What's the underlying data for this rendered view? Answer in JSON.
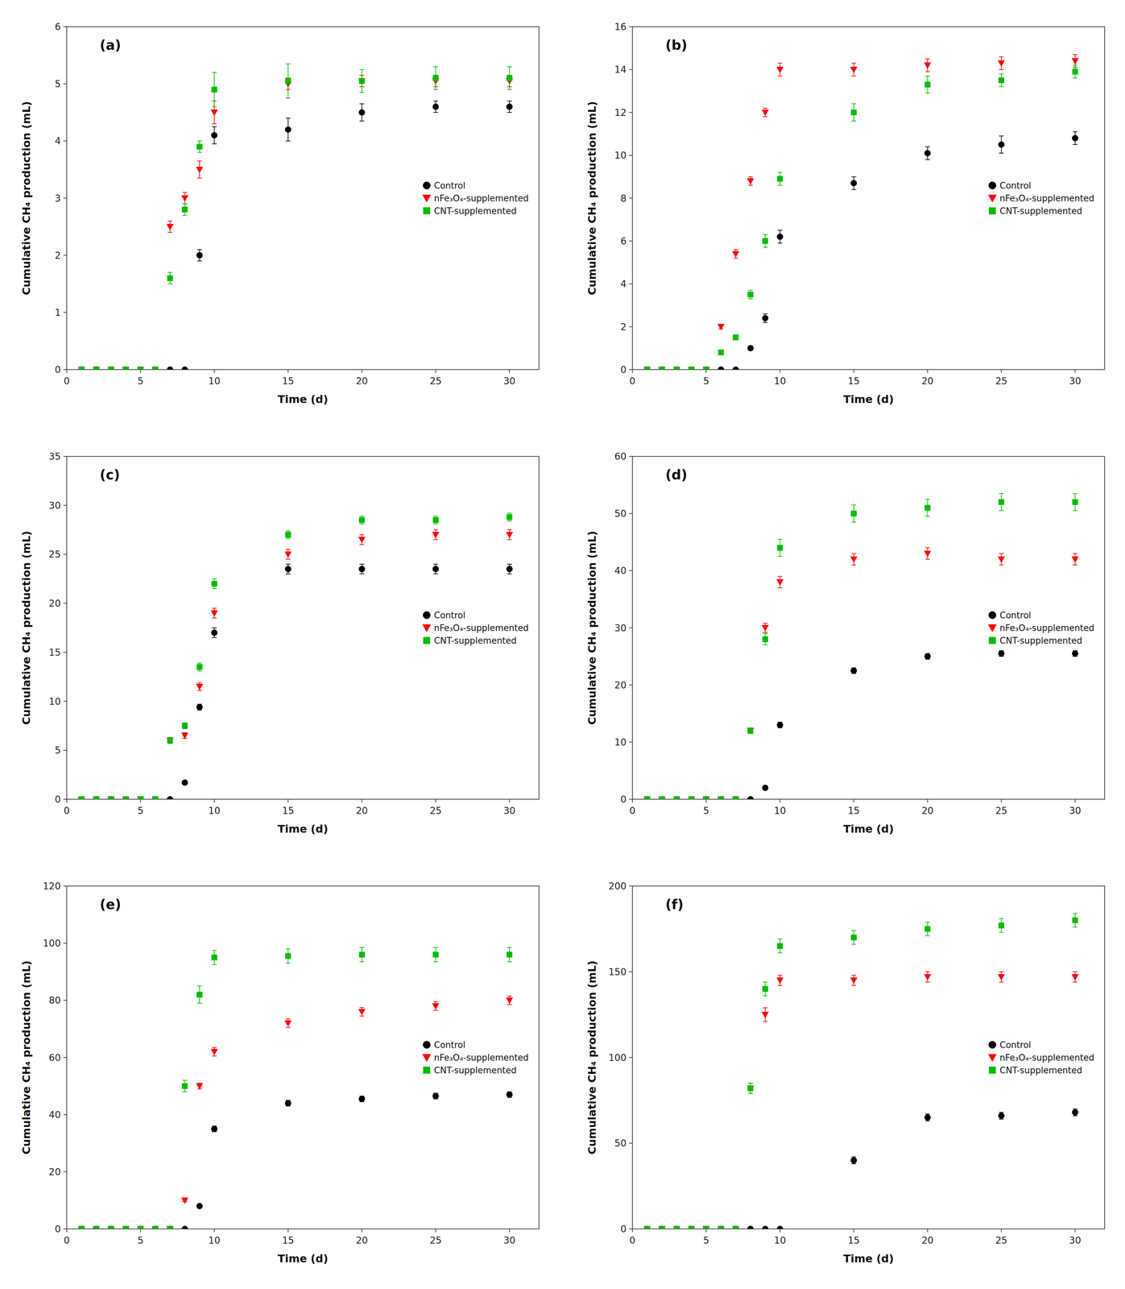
{
  "chart_data": [
    {
      "type": "scatter",
      "title": "(a)",
      "x_label": "Time (d)",
      "y_label": "Cumulative CH₄ production (mL)",
      "x": [
        1,
        2,
        3,
        4,
        5,
        6,
        7,
        8,
        9,
        10,
        15,
        20,
        25,
        30
      ],
      "xlim": [
        0,
        32
      ],
      "xticks": [
        0,
        5,
        10,
        15,
        20,
        25,
        30
      ],
      "ylim": [
        0,
        6
      ],
      "yticks": [
        0,
        1,
        2,
        3,
        4,
        5,
        6
      ],
      "grid": false,
      "legend": "center right",
      "series": [
        {
          "name": "Control",
          "color": "#000000",
          "marker": "circle",
          "values": [
            0,
            0,
            0,
            0,
            0,
            0,
            0,
            0,
            2.0,
            4.1,
            4.2,
            4.5,
            4.6,
            4.6
          ],
          "yerr": [
            0,
            0,
            0,
            0,
            0,
            0,
            0,
            0,
            0.1,
            0.15,
            0.2,
            0.15,
            0.1,
            0.1
          ]
        },
        {
          "name": "nFe₃O₄-supplemented",
          "color": "#ff0000",
          "marker": "triangle-down",
          "values": [
            0,
            0,
            0,
            0,
            0,
            0,
            2.5,
            3.0,
            3.5,
            4.5,
            5.0,
            5.05,
            5.05,
            5.05
          ],
          "yerr": [
            0,
            0,
            0,
            0,
            0,
            0,
            0.1,
            0.1,
            0.15,
            0.2,
            0.1,
            0.1,
            0.1,
            0.1
          ]
        },
        {
          "name": "CNT-supplemented",
          "color": "#00bb00",
          "marker": "square",
          "values": [
            0,
            0,
            0,
            0,
            0,
            0,
            1.6,
            2.8,
            3.9,
            4.9,
            5.05,
            5.05,
            5.1,
            5.1
          ],
          "yerr": [
            0,
            0,
            0,
            0,
            0,
            0,
            0.1,
            0.1,
            0.1,
            0.3,
            0.3,
            0.2,
            0.2,
            0.2
          ]
        }
      ]
    },
    {
      "type": "scatter",
      "title": "(b)",
      "x_label": "Time (d)",
      "y_label": "Cumulative CH₄ production (mL)",
      "x": [
        1,
        2,
        3,
        4,
        5,
        6,
        7,
        8,
        9,
        10,
        15,
        20,
        25,
        30
      ],
      "xlim": [
        0,
        32
      ],
      "xticks": [
        0,
        5,
        10,
        15,
        20,
        25,
        30
      ],
      "ylim": [
        0,
        16
      ],
      "yticks": [
        0,
        2,
        4,
        6,
        8,
        10,
        12,
        14,
        16
      ],
      "grid": false,
      "legend": "center right",
      "series": [
        {
          "name": "Control",
          "color": "#000000",
          "marker": "circle",
          "values": [
            0,
            0,
            0,
            0,
            0,
            0,
            0,
            1.0,
            2.4,
            6.2,
            8.7,
            10.1,
            10.5,
            10.8
          ],
          "yerr": [
            0,
            0,
            0,
            0,
            0,
            0,
            0,
            0.1,
            0.2,
            0.3,
            0.3,
            0.3,
            0.4,
            0.3
          ]
        },
        {
          "name": "nFe₃O₄-supplemented",
          "color": "#ff0000",
          "marker": "triangle-down",
          "values": [
            0,
            0,
            0,
            0,
            0,
            2.0,
            5.4,
            8.8,
            12.0,
            14.0,
            14.0,
            14.2,
            14.3,
            14.4
          ],
          "yerr": [
            0,
            0,
            0,
            0,
            0,
            0.1,
            0.2,
            0.2,
            0.2,
            0.3,
            0.3,
            0.3,
            0.3,
            0.3
          ]
        },
        {
          "name": "CNT-supplemented",
          "color": "#00bb00",
          "marker": "square",
          "values": [
            0,
            0,
            0,
            0,
            0,
            0.8,
            1.5,
            3.5,
            6.0,
            8.9,
            12.0,
            13.3,
            13.5,
            13.9
          ],
          "yerr": [
            0,
            0,
            0,
            0,
            0,
            0.1,
            0.1,
            0.2,
            0.3,
            0.3,
            0.4,
            0.4,
            0.3,
            0.3
          ]
        }
      ]
    },
    {
      "type": "scatter",
      "title": "(c)",
      "x_label": "Time (d)",
      "y_label": "Cumulative CH₄ production (mL)",
      "x": [
        1,
        2,
        3,
        4,
        5,
        6,
        7,
        8,
        9,
        10,
        15,
        20,
        25,
        30
      ],
      "xlim": [
        0,
        32
      ],
      "xticks": [
        0,
        5,
        10,
        15,
        20,
        25,
        30
      ],
      "ylim": [
        0,
        35
      ],
      "yticks": [
        0,
        5,
        10,
        15,
        20,
        25,
        30,
        35
      ],
      "grid": false,
      "legend": "center right",
      "series": [
        {
          "name": "Control",
          "color": "#000000",
          "marker": "circle",
          "values": [
            0,
            0,
            0,
            0,
            0,
            0,
            0,
            1.7,
            9.4,
            17.0,
            23.5,
            23.5,
            23.5,
            23.5
          ],
          "yerr": [
            0,
            0,
            0,
            0,
            0,
            0,
            0,
            0.2,
            0.3,
            0.5,
            0.5,
            0.5,
            0.5,
            0.5
          ]
        },
        {
          "name": "nFe₃O₄-supplemented",
          "color": "#ff0000",
          "marker": "triangle-down",
          "values": [
            0,
            0,
            0,
            0,
            0,
            0,
            6.0,
            6.5,
            11.5,
            19.0,
            25.0,
            26.5,
            27.0,
            27.0
          ],
          "yerr": [
            0,
            0,
            0,
            0,
            0,
            0,
            0.3,
            0.3,
            0.4,
            0.5,
            0.5,
            0.5,
            0.5,
            0.5
          ]
        },
        {
          "name": "CNT-supplemented",
          "color": "#00bb00",
          "marker": "square",
          "values": [
            0,
            0,
            0,
            0,
            0,
            0,
            6.0,
            7.5,
            13.5,
            22.0,
            27.0,
            28.5,
            28.5,
            28.8
          ],
          "yerr": [
            0,
            0,
            0,
            0,
            0,
            0,
            0.2,
            0.3,
            0.4,
            0.5,
            0.4,
            0.4,
            0.4,
            0.4
          ]
        }
      ]
    },
    {
      "type": "scatter",
      "title": "(d)",
      "x_label": "Time (d)",
      "y_label": "Cumulative CH₄ production (mL)",
      "x": [
        1,
        2,
        3,
        4,
        5,
        6,
        7,
        8,
        9,
        10,
        15,
        20,
        25,
        30
      ],
      "xlim": [
        0,
        32
      ],
      "xticks": [
        0,
        5,
        10,
        15,
        20,
        25,
        30
      ],
      "ylim": [
        0,
        60
      ],
      "yticks": [
        0,
        10,
        20,
        30,
        40,
        50,
        60
      ],
      "grid": false,
      "legend": "center right",
      "series": [
        {
          "name": "Control",
          "color": "#000000",
          "marker": "circle",
          "values": [
            0,
            0,
            0,
            0,
            0,
            0,
            0,
            0,
            2.0,
            13.0,
            22.5,
            25.0,
            25.5,
            25.5
          ],
          "yerr": [
            0,
            0,
            0,
            0,
            0,
            0,
            0,
            0,
            0.3,
            0.5,
            0.5,
            0.5,
            0.5,
            0.5
          ]
        },
        {
          "name": "nFe₃O₄-supplemented",
          "color": "#ff0000",
          "marker": "triangle-down",
          "values": [
            0,
            0,
            0,
            0,
            0,
            0,
            0,
            12.0,
            30.0,
            38.0,
            42.0,
            43.0,
            42.0,
            42.0
          ],
          "yerr": [
            0,
            0,
            0,
            0,
            0,
            0,
            0,
            0.5,
            0.8,
            1.0,
            1.0,
            1.0,
            1.0,
            1.0
          ]
        },
        {
          "name": "CNT-supplemented",
          "color": "#00bb00",
          "marker": "square",
          "values": [
            0,
            0,
            0,
            0,
            0,
            0,
            0,
            12.0,
            28.0,
            44.0,
            50.0,
            51.0,
            52.0,
            52.0
          ],
          "yerr": [
            0,
            0,
            0,
            0,
            0,
            0,
            0,
            0.5,
            1.0,
            1.5,
            1.5,
            1.5,
            1.5,
            1.5
          ]
        }
      ]
    },
    {
      "type": "scatter",
      "title": "(e)",
      "x_label": "Time (d)",
      "y_label": "Cumulative CH₄ production (mL)",
      "x": [
        1,
        2,
        3,
        4,
        5,
        6,
        7,
        8,
        9,
        10,
        15,
        20,
        25,
        30
      ],
      "xlim": [
        0,
        32
      ],
      "xticks": [
        0,
        5,
        10,
        15,
        20,
        25,
        30
      ],
      "ylim": [
        0,
        120
      ],
      "yticks": [
        0,
        20,
        40,
        60,
        80,
        100,
        120
      ],
      "grid": false,
      "legend": "center right",
      "series": [
        {
          "name": "Control",
          "color": "#000000",
          "marker": "circle",
          "values": [
            0,
            0,
            0,
            0,
            0,
            0,
            0,
            0,
            8.0,
            35.0,
            44.0,
            45.5,
            46.5,
            47.0
          ],
          "yerr": [
            0,
            0,
            0,
            0,
            0,
            0,
            0,
            0,
            0.5,
            1.0,
            1.0,
            1.0,
            1.0,
            1.0
          ]
        },
        {
          "name": "nFe₃O₄-supplemented",
          "color": "#ff0000",
          "marker": "triangle-down",
          "values": [
            0,
            0,
            0,
            0,
            0,
            0,
            0,
            10.0,
            50.0,
            62.0,
            72.0,
            76.0,
            78.0,
            80.0
          ],
          "yerr": [
            0,
            0,
            0,
            0,
            0,
            0,
            0,
            0.5,
            1.0,
            1.5,
            1.5,
            1.5,
            1.5,
            1.5
          ]
        },
        {
          "name": "CNT-supplemented",
          "color": "#00bb00",
          "marker": "square",
          "values": [
            0,
            0,
            0,
            0,
            0,
            0,
            0,
            50.0,
            82.0,
            95.0,
            95.5,
            96.0,
            96.0,
            96.0
          ],
          "yerr": [
            0,
            0,
            0,
            0,
            0,
            0,
            0,
            2.0,
            3.0,
            2.5,
            2.5,
            2.5,
            2.5,
            2.5
          ]
        }
      ]
    },
    {
      "type": "scatter",
      "title": "(f)",
      "x_label": "Time (d)",
      "y_label": "Cumulative CH₄ production (mL)",
      "x": [
        1,
        2,
        3,
        4,
        5,
        6,
        7,
        8,
        9,
        10,
        15,
        20,
        25,
        30
      ],
      "xlim": [
        0,
        32
      ],
      "xticks": [
        0,
        5,
        10,
        15,
        20,
        25,
        30
      ],
      "ylim": [
        0,
        200
      ],
      "yticks": [
        0,
        50,
        100,
        150,
        200
      ],
      "grid": false,
      "legend": "center right",
      "series": [
        {
          "name": "Control",
          "color": "#000000",
          "marker": "circle",
          "values": [
            0,
            0,
            0,
            0,
            0,
            0,
            0,
            0,
            0,
            0,
            40.0,
            65.0,
            66.0,
            68.0
          ],
          "yerr": [
            0,
            0,
            0,
            0,
            0,
            0,
            0,
            0,
            0,
            0,
            2.0,
            2.0,
            2.0,
            2.0
          ]
        },
        {
          "name": "nFe₃O₄-supplemented",
          "color": "#ff0000",
          "marker": "triangle-down",
          "values": [
            0,
            0,
            0,
            0,
            0,
            0,
            0,
            82.0,
            125.0,
            145.0,
            145.0,
            147.0,
            147.0,
            147.0
          ],
          "yerr": [
            0,
            0,
            0,
            0,
            0,
            0,
            0,
            3.0,
            4.0,
            3.0,
            3.0,
            3.0,
            3.0,
            3.0
          ]
        },
        {
          "name": "CNT-supplemented",
          "color": "#00bb00",
          "marker": "square",
          "values": [
            0,
            0,
            0,
            0,
            0,
            0,
            0,
            82.0,
            140.0,
            165.0,
            170.0,
            175.0,
            177.0,
            180.0
          ],
          "yerr": [
            0,
            0,
            0,
            0,
            0,
            0,
            0,
            3.0,
            4.0,
            4.0,
            4.0,
            4.0,
            4.0,
            4.0
          ]
        }
      ]
    }
  ]
}
